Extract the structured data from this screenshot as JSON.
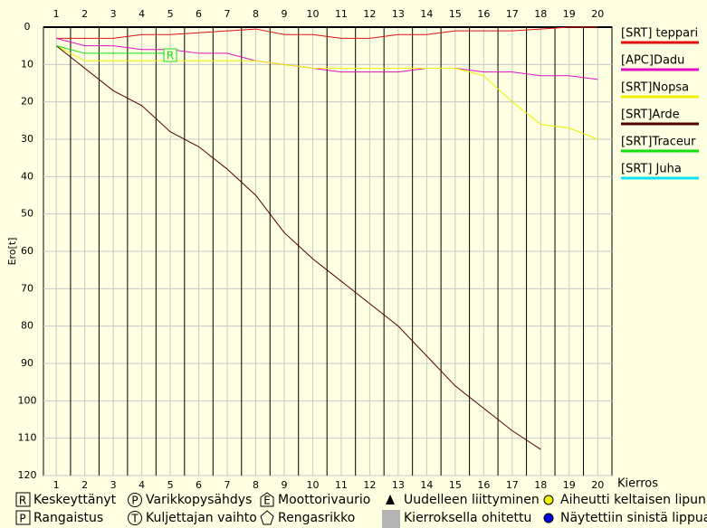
{
  "chart_data": {
    "type": "line",
    "y_label": "Ero[t]",
    "x_label": "Kierros",
    "x": [
      1,
      2,
      3,
      4,
      5,
      6,
      7,
      8,
      9,
      10,
      11,
      12,
      13,
      14,
      15,
      16,
      17,
      18,
      19,
      20
    ],
    "xlim": [
      0.55,
      20.5
    ],
    "xticks": [
      1,
      2,
      3,
      4,
      5,
      6,
      7,
      8,
      9,
      10,
      11,
      12,
      13,
      14,
      15,
      16,
      17,
      18,
      19,
      20
    ],
    "ylim": [
      0,
      120
    ],
    "yticks": [
      0,
      10,
      20,
      30,
      40,
      50,
      60,
      70,
      80,
      90,
      100,
      110,
      120
    ],
    "grid": true,
    "series": [
      {
        "name": "[SRT] teppari",
        "color": "#e01010",
        "values": [
          3,
          3,
          3,
          2,
          2,
          1.5,
          1,
          0.5,
          2,
          2,
          3,
          3,
          2,
          2,
          1,
          1,
          1,
          0.5,
          0,
          0
        ]
      },
      {
        "name": "[APC]Dadu",
        "color": "#e010c0",
        "values": [
          3,
          5,
          5,
          6,
          6,
          7,
          7,
          9,
          10,
          11,
          12,
          12,
          12,
          11,
          11,
          12,
          12,
          13,
          13,
          14
        ]
      },
      {
        "name": "[SRT]Nopsa",
        "color": "#f0f000",
        "values": [
          5,
          9,
          9,
          9,
          9,
          9,
          9,
          9,
          10,
          11,
          11,
          11,
          11,
          11,
          11,
          13,
          20,
          26,
          27,
          30
        ]
      },
      {
        "name": "[SRT]Arde",
        "color": "#500000",
        "values": [
          5,
          11,
          17,
          21,
          28,
          32,
          38,
          45,
          55,
          62,
          68,
          74,
          80,
          88,
          96,
          102,
          108,
          113,
          null,
          null
        ]
      },
      {
        "name": "[SRT]Traceur",
        "color": "#10e010",
        "values": [
          5,
          7,
          7,
          7,
          7,
          null,
          null,
          null,
          null,
          null,
          null,
          null,
          null,
          null,
          null,
          null,
          null,
          null,
          null,
          null
        ]
      },
      {
        "name": "[SRT] Juha",
        "color": "#10e0f0",
        "values": [
          null,
          null,
          null,
          null,
          null,
          null,
          null,
          null,
          null,
          null,
          null,
          null,
          null,
          null,
          null,
          null,
          null,
          null,
          null,
          null
        ]
      }
    ],
    "annotations": [
      {
        "text": "R",
        "x": 5,
        "y": 7.5,
        "color": "#10e010"
      }
    ],
    "symbol_legend": [
      {
        "symbol": "R",
        "label": "Keskeyttänyt"
      },
      {
        "symbol": "P",
        "label": "Varikkopysähdys"
      },
      {
        "symbol": "E",
        "label": "Moottorivaurio"
      },
      {
        "label": "Uudelleen liittyminen"
      },
      {
        "label": "Aiheutti keltaisen lipun"
      },
      {
        "symbol": "P",
        "label": "Rangaistus"
      },
      {
        "symbol": "T",
        "label": "Kuljettajan vaihto"
      },
      {
        "label": "Rengasrikko"
      },
      {
        "label": "Kierroksella ohitettu"
      },
      {
        "label": "Näytettiin sinistä lippua"
      }
    ]
  }
}
